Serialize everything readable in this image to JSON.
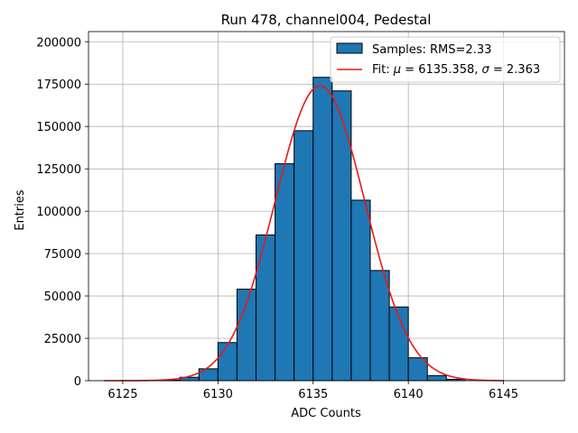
{
  "chart_data": {
    "type": "bar",
    "title": "Run 478, channel004, Pedestal",
    "xlabel": "ADC Counts",
    "ylabel": "Entries",
    "xlim": [
      6123.2,
      6148.2
    ],
    "ylim": [
      0,
      206000
    ],
    "xticks": [
      "6125",
      "6130",
      "6135",
      "6140",
      "6145"
    ],
    "yticks": [
      "0",
      "25000",
      "50000",
      "75000",
      "100000",
      "125000",
      "150000",
      "175000",
      "200000"
    ],
    "grid": true,
    "legend_position": "top-right",
    "bin_width": 1,
    "bins": [
      {
        "left": 6127,
        "count": 300
      },
      {
        "left": 6128,
        "count": 2000
      },
      {
        "left": 6129,
        "count": 7000
      },
      {
        "left": 6130,
        "count": 22500
      },
      {
        "left": 6131,
        "count": 54000
      },
      {
        "left": 6132,
        "count": 86000
      },
      {
        "left": 6133,
        "count": 128000
      },
      {
        "left": 6134,
        "count": 147500
      },
      {
        "left": 6135,
        "count": 179000
      },
      {
        "left": 6136,
        "count": 171000
      },
      {
        "left": 6137,
        "count": 106500
      },
      {
        "left": 6138,
        "count": 65000
      },
      {
        "left": 6139,
        "count": 43500
      },
      {
        "left": 6140,
        "count": 13500
      },
      {
        "left": 6141,
        "count": 3000
      },
      {
        "left": 6142,
        "count": 800
      }
    ],
    "fit": {
      "mu": 6135.358,
      "sigma": 2.363,
      "amplitude": 174000,
      "x_range": [
        6124,
        6145
      ]
    },
    "legend": [
      {
        "label": "Samples: RMS=2.33",
        "kind": "patch",
        "color": "#1f77b4"
      },
      {
        "label_prefix": "Fit: ",
        "mu_symbol": "μ",
        "mu_text": " = 6135.358, ",
        "sigma_symbol": "σ",
        "sigma_text": " = 2.363",
        "kind": "line",
        "color": "#e41a1c"
      }
    ]
  }
}
